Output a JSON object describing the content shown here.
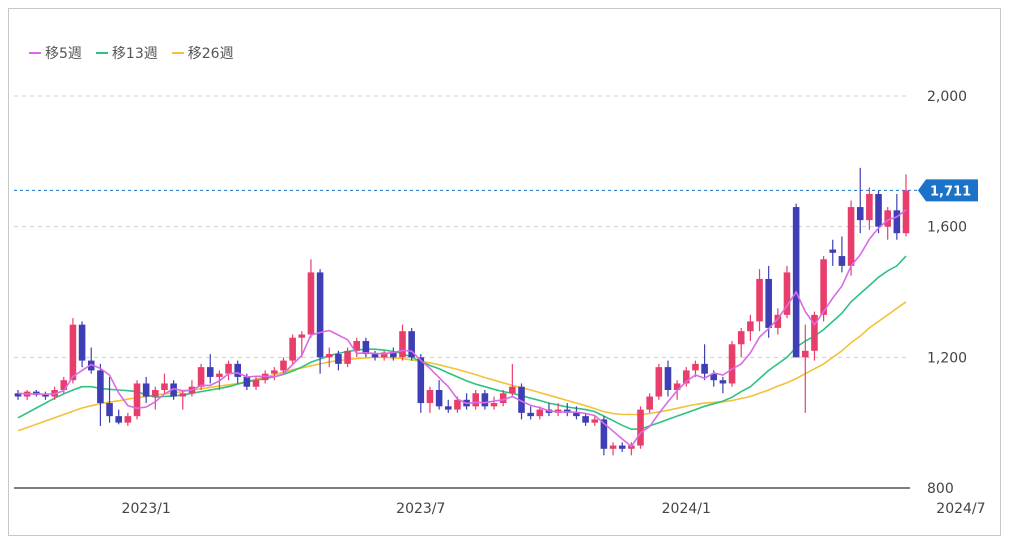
{
  "chart_data": {
    "type": "candlestick",
    "ylim": [
      800,
      2050
    ],
    "yticks": [
      800,
      1200,
      1600,
      2000
    ],
    "ytick_labels": [
      "800",
      "1,200",
      "1,600",
      "2,000"
    ],
    "xtick_labels": [
      "2023/1",
      "2023/7",
      "2024/1",
      "2024/7"
    ],
    "xtick_index": [
      14,
      44,
      73,
      103
    ],
    "current_price": 1711,
    "current_price_label": "1,711",
    "colors": {
      "up": "#e83e6c",
      "down": "#3f3fb5",
      "ma5": "#d96ce6",
      "ma13": "#2ec27e",
      "ma26": "#f2c23a",
      "current": "#1a73c8"
    },
    "legend": [
      {
        "name": "移5週",
        "key": "ma5"
      },
      {
        "name": "移13週",
        "key": "ma13"
      },
      {
        "name": "移26週",
        "key": "ma26"
      }
    ],
    "candles": [
      [
        1090,
        1100,
        1070,
        1080
      ],
      [
        1080,
        1100,
        1070,
        1095
      ],
      [
        1095,
        1100,
        1080,
        1085
      ],
      [
        1085,
        1095,
        1070,
        1080
      ],
      [
        1080,
        1110,
        1070,
        1100
      ],
      [
        1100,
        1140,
        1090,
        1130
      ],
      [
        1130,
        1320,
        1120,
        1300
      ],
      [
        1300,
        1310,
        1170,
        1190
      ],
      [
        1190,
        1230,
        1150,
        1160
      ],
      [
        1160,
        1180,
        990,
        1060
      ],
      [
        1060,
        1140,
        1000,
        1020
      ],
      [
        1020,
        1040,
        995,
        1000
      ],
      [
        1000,
        1030,
        990,
        1020
      ],
      [
        1020,
        1130,
        1010,
        1120
      ],
      [
        1120,
        1140,
        1060,
        1080
      ],
      [
        1080,
        1110,
        1040,
        1100
      ],
      [
        1100,
        1150,
        1090,
        1120
      ],
      [
        1120,
        1130,
        1070,
        1080
      ],
      [
        1080,
        1100,
        1040,
        1090
      ],
      [
        1090,
        1130,
        1080,
        1110
      ],
      [
        1110,
        1180,
        1100,
        1170
      ],
      [
        1170,
        1210,
        1120,
        1140
      ],
      [
        1140,
        1160,
        1100,
        1150
      ],
      [
        1150,
        1190,
        1130,
        1180
      ],
      [
        1180,
        1190,
        1120,
        1140
      ],
      [
        1140,
        1150,
        1100,
        1110
      ],
      [
        1110,
        1140,
        1100,
        1130
      ],
      [
        1130,
        1160,
        1120,
        1150
      ],
      [
        1150,
        1170,
        1130,
        1160
      ],
      [
        1160,
        1200,
        1150,
        1190
      ],
      [
        1190,
        1270,
        1180,
        1260
      ],
      [
        1260,
        1280,
        1200,
        1270
      ],
      [
        1270,
        1500,
        1260,
        1460
      ],
      [
        1460,
        1470,
        1150,
        1200
      ],
      [
        1200,
        1230,
        1170,
        1210
      ],
      [
        1210,
        1220,
        1160,
        1180
      ],
      [
        1180,
        1230,
        1170,
        1220
      ],
      [
        1220,
        1260,
        1200,
        1250
      ],
      [
        1250,
        1260,
        1200,
        1210
      ],
      [
        1210,
        1220,
        1190,
        1200
      ],
      [
        1200,
        1220,
        1190,
        1215
      ],
      [
        1215,
        1230,
        1190,
        1200
      ],
      [
        1200,
        1300,
        1190,
        1280
      ],
      [
        1280,
        1290,
        1190,
        1200
      ],
      [
        1200,
        1210,
        1030,
        1060
      ],
      [
        1060,
        1110,
        1030,
        1100
      ],
      [
        1100,
        1130,
        1040,
        1050
      ],
      [
        1050,
        1070,
        1030,
        1040
      ],
      [
        1040,
        1080,
        1030,
        1070
      ],
      [
        1070,
        1090,
        1040,
        1050
      ],
      [
        1050,
        1100,
        1040,
        1090
      ],
      [
        1090,
        1100,
        1040,
        1050
      ],
      [
        1050,
        1080,
        1040,
        1060
      ],
      [
        1060,
        1100,
        1050,
        1090
      ],
      [
        1090,
        1180,
        1080,
        1110
      ],
      [
        1110,
        1120,
        1010,
        1030
      ],
      [
        1030,
        1050,
        1010,
        1020
      ],
      [
        1020,
        1050,
        1010,
        1040
      ],
      [
        1040,
        1060,
        1020,
        1030
      ],
      [
        1030,
        1060,
        1020,
        1040
      ],
      [
        1040,
        1060,
        1020,
        1030
      ],
      [
        1030,
        1050,
        1010,
        1020
      ],
      [
        1020,
        1030,
        990,
        1000
      ],
      [
        1000,
        1020,
        990,
        1010
      ],
      [
        1010,
        1020,
        900,
        920
      ],
      [
        920,
        940,
        900,
        930
      ],
      [
        930,
        940,
        910,
        920
      ],
      [
        920,
        940,
        900,
        930
      ],
      [
        930,
        1050,
        920,
        1040
      ],
      [
        1040,
        1090,
        1030,
        1080
      ],
      [
        1080,
        1180,
        1070,
        1170
      ],
      [
        1170,
        1190,
        1080,
        1100
      ],
      [
        1100,
        1130,
        1070,
        1120
      ],
      [
        1120,
        1170,
        1110,
        1160
      ],
      [
        1160,
        1190,
        1140,
        1180
      ],
      [
        1180,
        1240,
        1130,
        1150
      ],
      [
        1150,
        1160,
        1110,
        1130
      ],
      [
        1130,
        1140,
        1090,
        1120
      ],
      [
        1120,
        1250,
        1110,
        1240
      ],
      [
        1240,
        1290,
        1200,
        1280
      ],
      [
        1280,
        1330,
        1250,
        1310
      ],
      [
        1310,
        1470,
        1280,
        1440
      ],
      [
        1440,
        1480,
        1260,
        1290
      ],
      [
        1290,
        1350,
        1270,
        1330
      ],
      [
        1330,
        1480,
        1320,
        1460
      ],
      [
        1660,
        1670,
        1200,
        1200
      ],
      [
        1200,
        1300,
        1030,
        1220
      ],
      [
        1220,
        1340,
        1190,
        1330
      ],
      [
        1330,
        1510,
        1310,
        1500
      ],
      [
        1530,
        1560,
        1480,
        1520
      ],
      [
        1510,
        1570,
        1460,
        1480
      ],
      [
        1480,
        1680,
        1450,
        1660
      ],
      [
        1660,
        1780,
        1580,
        1620
      ],
      [
        1620,
        1720,
        1590,
        1700
      ],
      [
        1700,
        1710,
        1580,
        1600
      ],
      [
        1600,
        1660,
        1560,
        1650
      ],
      [
        1650,
        1700,
        1560,
        1580
      ],
      [
        1580,
        1760,
        1570,
        1711
      ]
    ],
    "ma5": [
      1090,
      1088,
      1088,
      1087,
      1088,
      1098,
      1141,
      1160,
      1178,
      1166,
      1146,
      1091,
      1052,
      1044,
      1048,
      1064,
      1088,
      1104,
      1098,
      1100,
      1114,
      1114,
      1128,
      1150,
      1152,
      1140,
      1142,
      1142,
      1140,
      1150,
      1178,
      1206,
      1268,
      1276,
      1282,
      1268,
      1254,
      1212,
      1214,
      1212,
      1211,
      1215,
      1221,
      1219,
      1191,
      1166,
      1138,
      1110,
      1072,
      1059,
      1062,
      1061,
      1066,
      1070,
      1080,
      1066,
      1053,
      1046,
      1036,
      1033,
      1033,
      1032,
      1028,
      1022,
      998,
      974,
      950,
      927,
      969,
      988,
      1028,
      1064,
      1098,
      1126,
      1146,
      1136,
      1152,
      1146,
      1164,
      1180,
      1214,
      1262,
      1288,
      1318,
      1358,
      1400,
      1340,
      1300,
      1340,
      1382,
      1418,
      1480,
      1514,
      1562,
      1596,
      1620,
      1630,
      1652
    ],
    "ma13": [
      1015,
      1030,
      1045,
      1060,
      1075,
      1088,
      1100,
      1110,
      1110,
      1105,
      1102,
      1100,
      1098,
      1095,
      1085,
      1078,
      1080,
      1082,
      1085,
      1090,
      1095,
      1100,
      1105,
      1110,
      1118,
      1125,
      1130,
      1135,
      1140,
      1148,
      1158,
      1170,
      1185,
      1195,
      1205,
      1212,
      1218,
      1222,
      1225,
      1225,
      1222,
      1218,
      1212,
      1200,
      1188,
      1175,
      1165,
      1152,
      1140,
      1128,
      1118,
      1110,
      1102,
      1095,
      1090,
      1083,
      1075,
      1068,
      1060,
      1054,
      1048,
      1044,
      1040,
      1034,
      1020,
      1006,
      992,
      980,
      980,
      990,
      1000,
      1010,
      1020,
      1030,
      1040,
      1050,
      1058,
      1066,
      1078,
      1095,
      1110,
      1135,
      1160,
      1180,
      1200,
      1230,
      1250,
      1265,
      1285,
      1310,
      1335,
      1370,
      1395,
      1420,
      1445,
      1465,
      1480,
      1510
    ],
    "ma26": [
      975,
      985,
      995,
      1005,
      1015,
      1025,
      1035,
      1045,
      1052,
      1058,
      1063,
      1067,
      1072,
      1076,
      1080,
      1085,
      1088,
      1091,
      1095,
      1100,
      1104,
      1108,
      1112,
      1116,
      1120,
      1126,
      1133,
      1140,
      1147,
      1155,
      1162,
      1168,
      1174,
      1180,
      1186,
      1190,
      1193,
      1196,
      1198,
      1200,
      1200,
      1198,
      1196,
      1192,
      1188,
      1183,
      1177,
      1170,
      1163,
      1155,
      1147,
      1138,
      1130,
      1122,
      1114,
      1107,
      1100,
      1092,
      1084,
      1076,
      1068,
      1060,
      1052,
      1043,
      1034,
      1028,
      1025,
      1025,
      1025,
      1028,
      1033,
      1038,
      1044,
      1050,
      1056,
      1060,
      1062,
      1064,
      1068,
      1074,
      1080,
      1090,
      1100,
      1112,
      1122,
      1135,
      1150,
      1165,
      1180,
      1200,
      1220,
      1245,
      1265,
      1290,
      1310,
      1330,
      1350,
      1370
    ]
  }
}
